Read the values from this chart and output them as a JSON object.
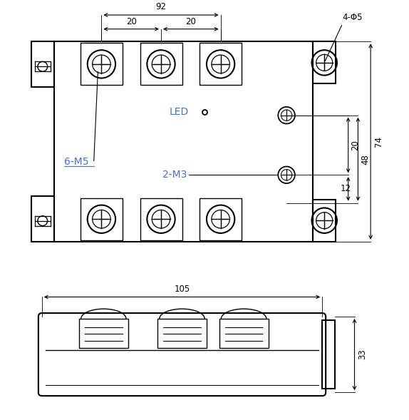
{
  "fig_width": 5.74,
  "fig_height": 5.89,
  "dpi": 100,
  "bg_color": "#ffffff",
  "line_color": "#000000",
  "label_color": "#4472c4",
  "lw": 1.5,
  "tlw": 1.0,
  "top_view": {
    "note_6m5": "6-M5",
    "note_led": "LED",
    "note_2m3": "2-M3"
  },
  "dims": {
    "top_92": "92",
    "top_20a": "20",
    "top_20b": "20",
    "right_74": "74",
    "right_48": "48",
    "right_20": "20",
    "right_12": "12",
    "side_105": "105",
    "side_33": "33",
    "hole_label": "4-Φ5"
  }
}
